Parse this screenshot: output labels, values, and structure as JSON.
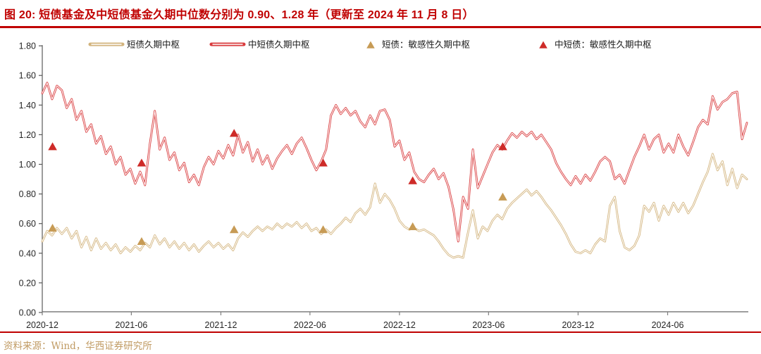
{
  "header": {
    "title": "图 20:  短债基金及中短债基金久期中位数分别为 0.90、1.28 年（更新至 2024 年 11 月 8 日）"
  },
  "source": {
    "text": "资料来源：Wind，华西证券研究所"
  },
  "palette": {
    "title_red": "#C00000",
    "short_line": "#D2B37C",
    "mid_short_line": "#D93A3C",
    "short_marker": "#C79B55",
    "mid_short_marker": "#CE2B28",
    "axis_gray": "#7F7F7F",
    "y_axis_gray": "#595959",
    "tick_text": "#262626",
    "source_tan": "#C09A62"
  },
  "legend": {
    "items": [
      {
        "label": "短债久期中枢",
        "swatch": "line",
        "color": "#D2B37C"
      },
      {
        "label": "中短债久期中枢",
        "swatch": "line",
        "color": "#D93A3C"
      },
      {
        "label": "短债：敏感性久期中枢",
        "swatch": "triangle",
        "color": "#C79B55"
      },
      {
        "label": "中短债：敏感性久期中枢",
        "swatch": "triangle",
        "color": "#CE2B28"
      }
    ]
  },
  "chart_data": {
    "type": "line",
    "title": "短债基金及中短债基金久期中位数（更新至 2024 年 11 月 8 日）",
    "x_domain": {
      "start_date": "2020-12-01",
      "end_date": "2024-11-08",
      "total_days": 1440
    },
    "x_ticks": [
      {
        "label": "2020-12",
        "day": 0
      },
      {
        "label": "2021-06",
        "day": 182
      },
      {
        "label": "2021-12",
        "day": 365
      },
      {
        "label": "2022-06",
        "day": 547
      },
      {
        "label": "2022-12",
        "day": 730
      },
      {
        "label": "2023-06",
        "day": 912
      },
      {
        "label": "2023-12",
        "day": 1095
      },
      {
        "label": "2024-06",
        "day": 1278
      }
    ],
    "y_axis": {
      "min": 0,
      "max": 1.8,
      "step": 0.2,
      "grid": false,
      "tick_labels": [
        "0.00",
        "0.20",
        "0.40",
        "0.60",
        "0.80",
        "1.00",
        "1.20",
        "1.40",
        "1.60",
        "1.80"
      ]
    },
    "series": [
      {
        "name": "短债久期中枢",
        "type": "line",
        "color": "#D2B37C",
        "start_date": "2020-12-01",
        "step_days": 10,
        "values": [
          0.48,
          0.55,
          0.52,
          0.57,
          0.53,
          0.57,
          0.5,
          0.55,
          0.44,
          0.51,
          0.42,
          0.5,
          0.43,
          0.47,
          0.42,
          0.46,
          0.4,
          0.44,
          0.41,
          0.45,
          0.42,
          0.47,
          0.44,
          0.52,
          0.46,
          0.5,
          0.44,
          0.48,
          0.43,
          0.47,
          0.42,
          0.46,
          0.41,
          0.45,
          0.48,
          0.44,
          0.47,
          0.43,
          0.46,
          0.42,
          0.5,
          0.54,
          0.51,
          0.55,
          0.58,
          0.55,
          0.58,
          0.56,
          0.6,
          0.57,
          0.6,
          0.58,
          0.61,
          0.57,
          0.6,
          0.55,
          0.57,
          0.53,
          0.56,
          0.53,
          0.57,
          0.6,
          0.64,
          0.61,
          0.67,
          0.7,
          0.66,
          0.71,
          0.87,
          0.74,
          0.8,
          0.76,
          0.7,
          0.62,
          0.58,
          0.56,
          0.57,
          0.55,
          0.56,
          0.54,
          0.52,
          0.48,
          0.43,
          0.39,
          0.37,
          0.38,
          0.37,
          0.54,
          0.69,
          0.5,
          0.58,
          0.55,
          0.62,
          0.66,
          0.63,
          0.7,
          0.74,
          0.77,
          0.8,
          0.83,
          0.79,
          0.82,
          0.78,
          0.73,
          0.69,
          0.64,
          0.59,
          0.53,
          0.46,
          0.41,
          0.4,
          0.42,
          0.4,
          0.46,
          0.5,
          0.48,
          0.72,
          0.78,
          0.55,
          0.44,
          0.42,
          0.45,
          0.52,
          0.72,
          0.68,
          0.74,
          0.62,
          0.72,
          0.66,
          0.74,
          0.68,
          0.74,
          0.67,
          0.72,
          0.8,
          0.88,
          0.95,
          1.07,
          0.96,
          1.02,
          0.86,
          0.97,
          0.84,
          0.93,
          0.9
        ]
      },
      {
        "name": "中短债久期中枢",
        "type": "line",
        "color": "#D93A3C",
        "start_date": "2020-12-01",
        "step_days": 10,
        "values": [
          1.48,
          1.55,
          1.44,
          1.53,
          1.5,
          1.38,
          1.44,
          1.3,
          1.36,
          1.22,
          1.27,
          1.14,
          1.19,
          1.07,
          1.12,
          1.0,
          1.05,
          0.93,
          0.97,
          0.87,
          0.95,
          0.86,
          1.14,
          1.36,
          1.1,
          1.18,
          1.03,
          1.08,
          0.96,
          1.01,
          0.88,
          0.93,
          0.86,
          0.98,
          1.05,
          1.0,
          1.09,
          1.04,
          1.13,
          1.06,
          1.2,
          1.08,
          1.15,
          1.02,
          1.1,
          1.0,
          1.06,
          0.97,
          1.04,
          1.09,
          1.13,
          1.07,
          1.14,
          1.18,
          1.11,
          1.03,
          0.96,
          1.02,
          1.1,
          1.33,
          1.4,
          1.34,
          1.38,
          1.33,
          1.36,
          1.29,
          1.25,
          1.33,
          1.27,
          1.36,
          1.37,
          1.3,
          1.12,
          1.16,
          1.03,
          1.08,
          0.95,
          0.9,
          0.88,
          0.93,
          0.97,
          0.9,
          0.94,
          0.85,
          0.7,
          0.48,
          0.78,
          0.7,
          1.1,
          0.84,
          0.92,
          1.0,
          1.08,
          1.13,
          1.1,
          1.16,
          1.21,
          1.18,
          1.22,
          1.19,
          1.22,
          1.17,
          1.2,
          1.15,
          1.1,
          1.01,
          0.95,
          0.9,
          0.86,
          0.92,
          0.87,
          0.93,
          0.89,
          0.95,
          1.02,
          1.05,
          1.02,
          0.9,
          0.93,
          0.87,
          0.96,
          1.05,
          1.12,
          1.2,
          1.1,
          1.17,
          1.2,
          1.08,
          1.14,
          1.08,
          1.2,
          1.12,
          1.06,
          1.15,
          1.25,
          1.3,
          1.27,
          1.46,
          1.37,
          1.42,
          1.44,
          1.48,
          1.49,
          1.17,
          1.28
        ]
      }
    ],
    "marker_series": [
      {
        "name": "短债：敏感性久期中枢",
        "type": "scatter",
        "marker": "triangle",
        "color": "#C79B55",
        "points": [
          {
            "day": 21,
            "value": 0.57
          },
          {
            "day": 203,
            "value": 0.48
          },
          {
            "day": 392,
            "value": 0.56
          },
          {
            "day": 574,
            "value": 0.56
          },
          {
            "day": 757,
            "value": 0.58
          },
          {
            "day": 941,
            "value": 0.78
          }
        ]
      },
      {
        "name": "中短债：敏感性久期中枢",
        "type": "scatter",
        "marker": "triangle",
        "color": "#CE2B28",
        "points": [
          {
            "day": 21,
            "value": 1.12
          },
          {
            "day": 203,
            "value": 1.01
          },
          {
            "day": 392,
            "value": 1.21
          },
          {
            "day": 574,
            "value": 1.01
          },
          {
            "day": 757,
            "value": 0.89
          },
          {
            "day": 941,
            "value": 1.12
          }
        ]
      }
    ]
  }
}
